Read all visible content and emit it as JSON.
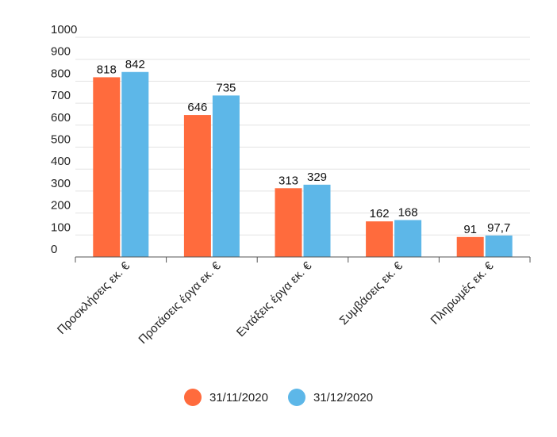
{
  "chart_data": {
    "type": "bar",
    "title": "",
    "xlabel": "",
    "ylabel": "",
    "categories": [
      "Προσκλήσεις εκ. €",
      "Προτάσεις έργα εκ. €",
      "Εντάξεις έργα εκ. €",
      "Συμβάσεις εκ. €",
      "Πληρωμές εκ. €"
    ],
    "series": [
      {
        "name": "31/11/2020",
        "values": [
          818,
          646,
          313,
          162,
          91
        ],
        "labels": [
          "818",
          "646",
          "313",
          "162",
          "91"
        ],
        "color": "#FF6B3D"
      },
      {
        "name": "31/12/2020",
        "values": [
          842,
          735,
          329,
          168,
          97.7
        ],
        "labels": [
          "842",
          "735",
          "329",
          "168",
          "97,7"
        ],
        "color": "#5DB7E8"
      }
    ],
    "yticks": [
      0,
      100,
      200,
      300,
      400,
      500,
      600,
      700,
      800,
      900,
      1000
    ],
    "ylim": [
      0,
      1000
    ],
    "grid": true,
    "legend": "bottom-center"
  }
}
